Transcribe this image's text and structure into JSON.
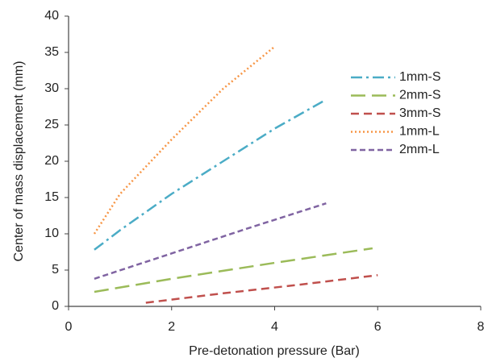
{
  "chart_data": {
    "type": "line",
    "x_label": "Pre-detonation pressure (Bar)",
    "y_label": "Center of mass displacement (mm)",
    "xlim": [
      0,
      8
    ],
    "xticks": [
      0,
      2,
      4,
      6,
      8
    ],
    "ylim": [
      0,
      40
    ],
    "yticks": [
      0,
      5,
      10,
      15,
      20,
      25,
      30,
      35,
      40
    ],
    "grid": false,
    "legend": "upper right",
    "series": [
      {
        "name": "1mm-S",
        "color": "#4bacc6",
        "dash": "14 5 3 5",
        "x": [
          0.5,
          1,
          2,
          3,
          4,
          5
        ],
        "values": [
          7.8,
          10.5,
          15.5,
          20,
          24.5,
          28.5
        ]
      },
      {
        "name": "2mm-S",
        "color": "#9bbb59",
        "dash": "18 8",
        "x": [
          0.5,
          2,
          4,
          5.9
        ],
        "values": [
          2,
          3.8,
          6,
          8
        ]
      },
      {
        "name": "3mm-S",
        "color": "#c0504d",
        "dash": "10 6",
        "x": [
          1.5,
          3,
          4.5,
          6
        ],
        "values": [
          0.5,
          1.8,
          3,
          4.3
        ]
      },
      {
        "name": "1mm-L",
        "color": "#f79646",
        "dash": "2 3",
        "x": [
          0.5,
          1,
          2,
          3,
          4
        ],
        "values": [
          10,
          15.5,
          23,
          30,
          35.8
        ]
      },
      {
        "name": "2mm-L",
        "color": "#8064a2",
        "dash": "7 4",
        "x": [
          0.5,
          2,
          3.5,
          5
        ],
        "values": [
          3.8,
          7.3,
          10.8,
          14.2
        ]
      }
    ]
  }
}
